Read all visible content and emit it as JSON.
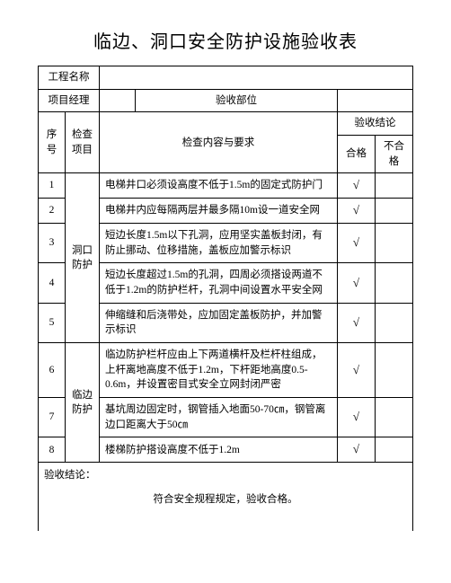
{
  "title": "临边、洞口安全防护设施验收表",
  "header_rows": {
    "project_name_label": "工程名称",
    "project_name_value": "",
    "project_manager_label": "项目经理",
    "project_manager_value": "",
    "acceptance_dept_label": "验收部位",
    "acceptance_dept_value": ""
  },
  "table_headers": {
    "seq": "序号",
    "check_item": "检查\n项目",
    "check_content": "检查内容与要求",
    "result": "验收结论",
    "pass": "合格",
    "fail": "不合格"
  },
  "categories": {
    "hole_protection": "洞口\n防护",
    "edge_protection": "临边\n防护"
  },
  "rows": [
    {
      "seq": "1",
      "content": "电梯井口必须设高度不低于1.5m的固定式防护门",
      "pass": "√",
      "fail": ""
    },
    {
      "seq": "2",
      "content": "电梯井内应每隔两层并最多隔10m设一道安全网",
      "pass": "√",
      "fail": ""
    },
    {
      "seq": "3",
      "content": "短边长度1.5m以下孔洞，应用坚实盖板封闭，有防止挪动、位移措施，盖板应加警示标识",
      "pass": "√",
      "fail": ""
    },
    {
      "seq": "4",
      "content": "短边长度超过1.5m的孔洞，四周必须搭设两道不低于1.2m的防护栏杆，孔洞中间设置水平安全网",
      "pass": "√",
      "fail": ""
    },
    {
      "seq": "5",
      "content": "伸缩缝和后浇带处，应加固定盖板防护，并加警示标识",
      "pass": "√",
      "fail": ""
    },
    {
      "seq": "6",
      "content": "临边防护栏杆应由上下两道横杆及栏杆柱组成，上杆离地高度不低于1.2m，下杆距地高度0.5-0.6m，并设置密目式安全立网封闭严密",
      "pass": "√",
      "fail": ""
    },
    {
      "seq": "7",
      "content": "基坑周边固定时，钢管插入地面50-70㎝，钢管离边口距离大于50㎝",
      "pass": "√",
      "fail": ""
    },
    {
      "seq": "8",
      "content": "楼梯防护搭设高度不低于1.2m",
      "pass": "√",
      "fail": ""
    }
  ],
  "conclusion": {
    "label": "验收结论：",
    "text": "符合安全规程规定，验收合格。"
  },
  "styling": {
    "title_fontsize": 20,
    "body_fontsize": 11.5,
    "border_color": "#000000",
    "background_color": "#ffffff",
    "font_family": "SimSun"
  }
}
